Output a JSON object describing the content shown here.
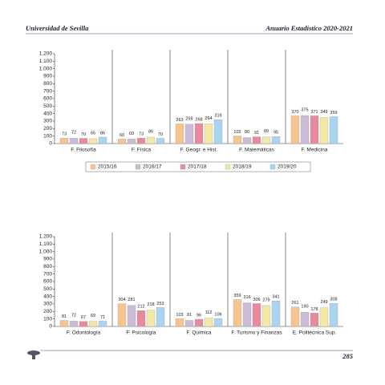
{
  "header": {
    "left": "Universidad de Sevilla",
    "right": "Anuario Estadístico 2020-2021"
  },
  "footer": {
    "page": "285"
  },
  "chart_data": [
    {
      "type": "bar",
      "categories": [
        "F. Filosofía",
        "F. Física",
        "F. Geogr. e Hist.",
        "F. Matemáticas",
        "F. Medicina"
      ],
      "series": [
        {
          "name": "2015/16",
          "color": "#f6c48e",
          "values": [
            73,
            60,
            263,
            102,
            370
          ]
        },
        {
          "name": "2016/17",
          "color": "#cbbbd9",
          "values": [
            72,
            60,
            259,
            80,
            375
          ]
        },
        {
          "name": "2017/18",
          "color": "#e98a9c",
          "values": [
            70,
            73,
            268,
            91,
            371
          ]
        },
        {
          "name": "2018/19",
          "color": "#f3e8a4",
          "values": [
            65,
            86,
            264,
            89,
            349
          ]
        },
        {
          "name": "2019/20",
          "color": "#a9d5f2",
          "values": [
            86,
            70,
            319,
            95,
            359
          ]
        }
      ],
      "ylim": [
        0,
        1200
      ],
      "yticks": [
        0,
        100,
        200,
        300,
        400,
        500,
        600,
        700,
        800,
        900,
        {
          "value": 1000,
          "label": "1.000"
        },
        {
          "value": 1100,
          "label": "1.100"
        },
        {
          "value": 1200,
          "label": "1.200"
        }
      ],
      "legend": "bottom"
    },
    {
      "type": "bar",
      "categories": [
        "F. Odontología",
        "F. Psicología",
        "F. Química",
        "F. Turismo y Finanzas",
        "E. Politécnica Sup."
      ],
      "series": [
        {
          "color": "#f6c48e",
          "values": [
            81,
            304,
            103,
            359,
            261
          ]
        },
        {
          "color": "#cbbbd9",
          "values": [
            72,
            281,
            81,
            316,
            190
          ]
        },
        {
          "color": "#e98a9c",
          "values": [
            67,
            212,
            96,
            306,
            178
          ]
        },
        {
          "color": "#f3e8a4",
          "values": [
            69,
            218,
            112,
            279,
            249
          ]
        },
        {
          "color": "#a9d5f2",
          "values": [
            71,
            253,
            106,
            341,
            308
          ]
        }
      ],
      "ylim": [
        0,
        1200
      ],
      "yticks": [
        0,
        100,
        200,
        300,
        400,
        500,
        600,
        700,
        800,
        900,
        {
          "value": 1000,
          "label": "1.000"
        },
        {
          "value": 1100,
          "label": "1.100"
        },
        {
          "value": 1200,
          "label": "1.200"
        }
      ]
    }
  ]
}
